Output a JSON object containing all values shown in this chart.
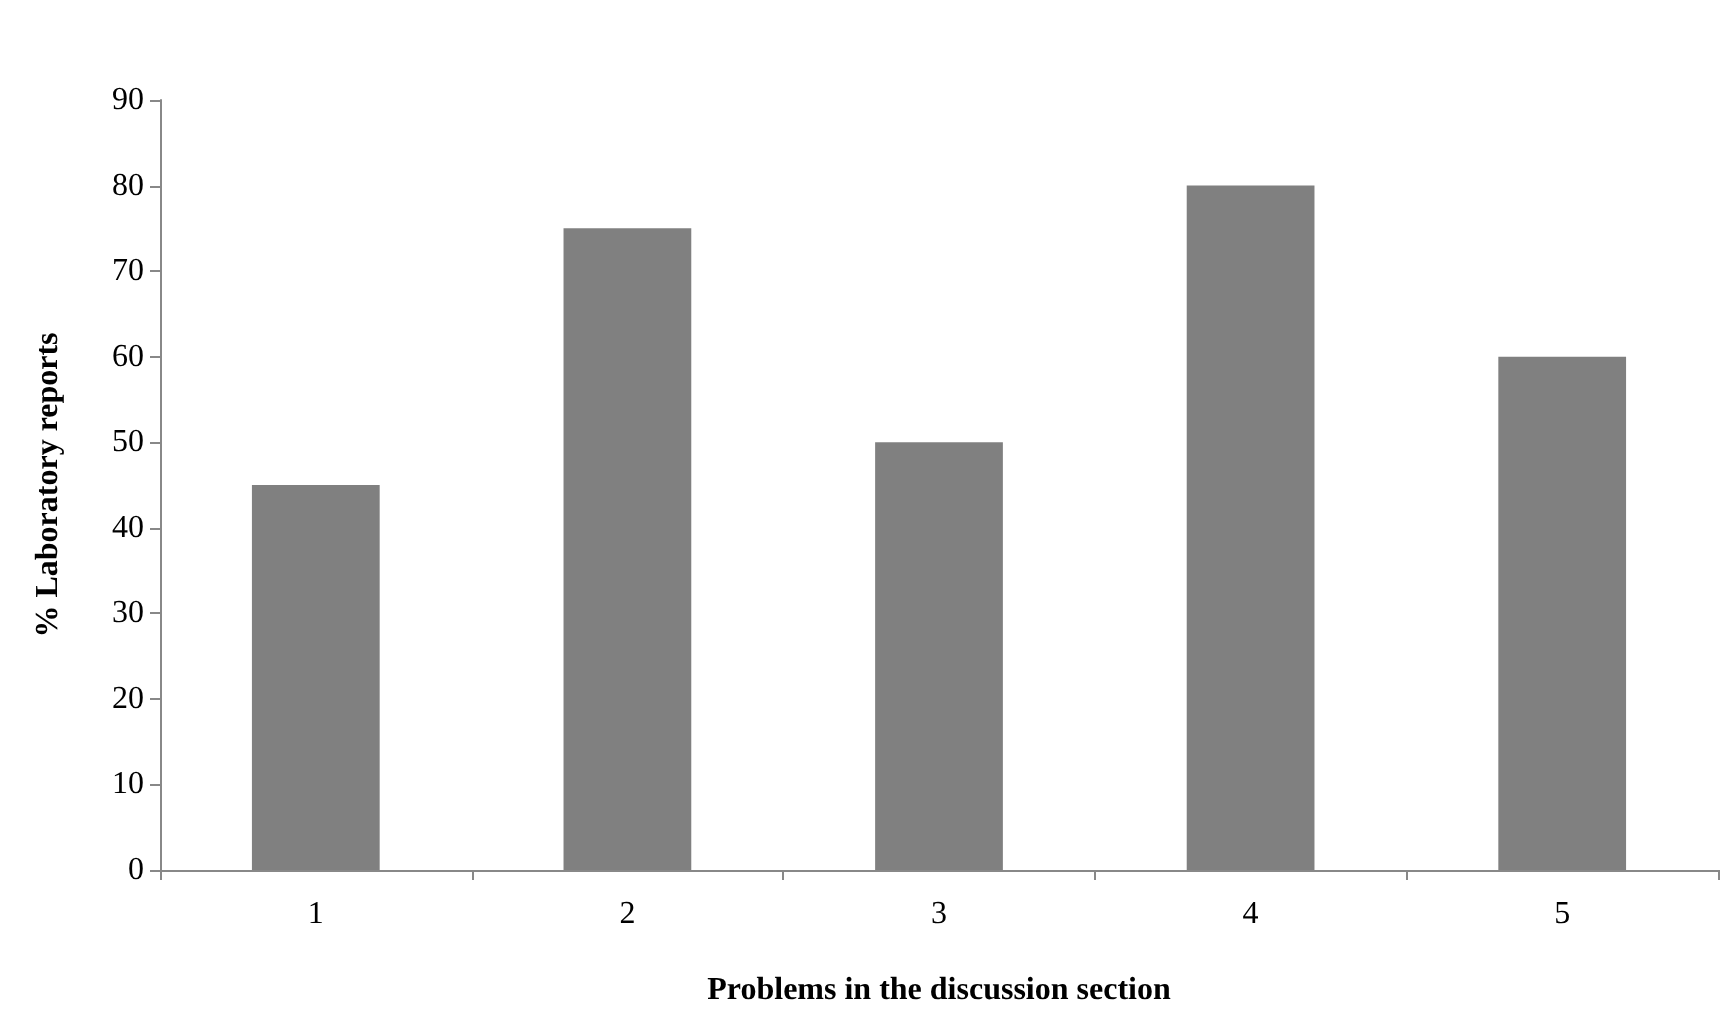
{
  "chart_data": {
    "type": "bar",
    "xlabel": "Problems in the discussion section",
    "ylabel": "% Laboratory reports",
    "categories": [
      "1",
      "2",
      "3",
      "4",
      "5"
    ],
    "values": [
      45,
      75,
      50,
      80,
      60
    ],
    "color": "#808080",
    "ylim": [
      0,
      90
    ],
    "yticks": [
      0,
      10,
      20,
      30,
      40,
      50,
      60,
      70,
      80,
      90
    ],
    "grid": false
  }
}
